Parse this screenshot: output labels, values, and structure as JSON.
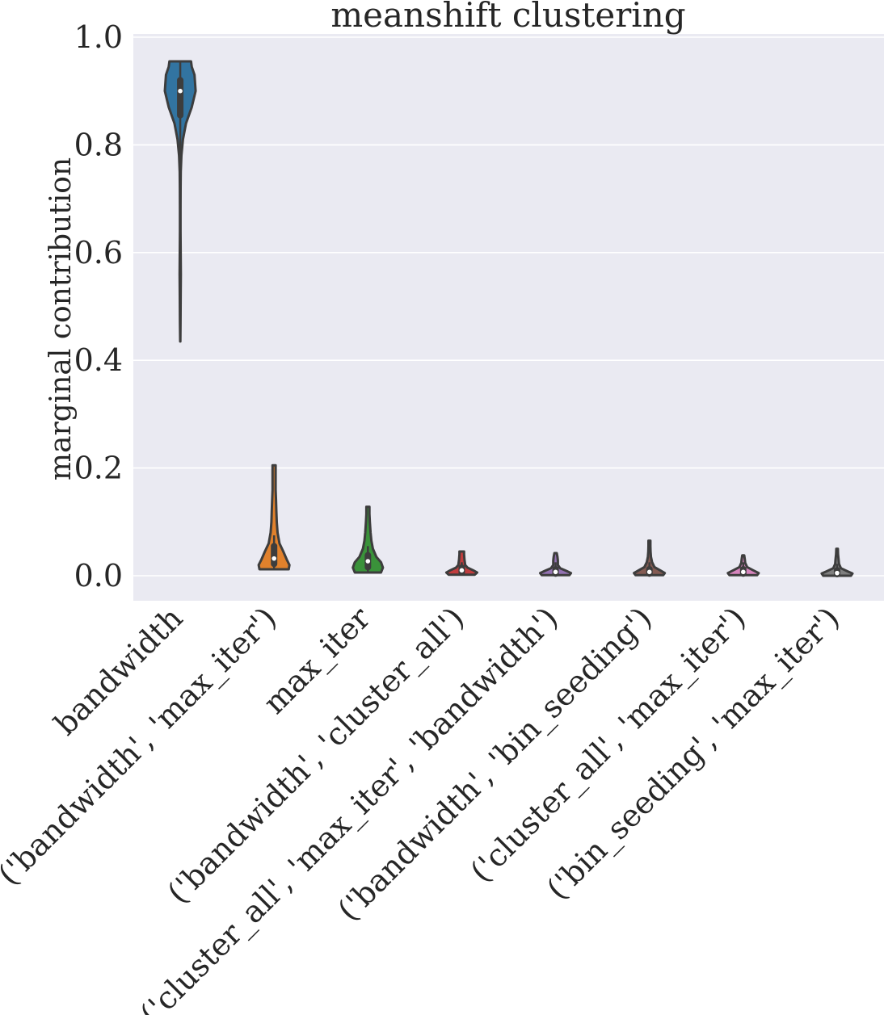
{
  "chart_data": {
    "type": "violin",
    "title": "meanshift clustering",
    "xlabel": "",
    "ylabel": "marginal contribution",
    "ylim": [
      -0.045,
      1.005
    ],
    "yticks": [
      0.0,
      0.2,
      0.4,
      0.6,
      0.8,
      1.0
    ],
    "ytick_labels": [
      "0.0",
      "0.2",
      "0.4",
      "0.6",
      "0.8",
      "1.0"
    ],
    "grid": true,
    "background": "#eaeaf2",
    "categories": [
      "bandwidth",
      "('bandwidth', 'max_iter')",
      "max_iter",
      "('bandwidth', 'cluster_all')",
      "('cluster_all', 'max_iter', 'bandwidth')",
      "('bandwidth', 'bin_seeding')",
      "('cluster_all', 'max_iter')",
      "('bin_seeding', 'max_iter')"
    ],
    "colors": [
      "#3274a1",
      "#e1812c",
      "#3a923a",
      "#c03d3e",
      "#9372b2",
      "#845b53",
      "#d684bd",
      "#7f7f7f"
    ],
    "series": [
      {
        "min": 0.435,
        "max": 0.955,
        "q1": 0.855,
        "median": 0.9,
        "q3": 0.92,
        "whisker_low": 0.755,
        "whisker_high": 0.955,
        "profile": [
          [
            0.435,
            0.002
          ],
          [
            0.47,
            0.008
          ],
          [
            0.52,
            0.012
          ],
          [
            0.56,
            0.016
          ],
          [
            0.6,
            0.012
          ],
          [
            0.64,
            0.008
          ],
          [
            0.68,
            0.008
          ],
          [
            0.72,
            0.01
          ],
          [
            0.75,
            0.014
          ],
          [
            0.78,
            0.03
          ],
          [
            0.81,
            0.07
          ],
          [
            0.84,
            0.15
          ],
          [
            0.87,
            0.3
          ],
          [
            0.9,
            0.4
          ],
          [
            0.93,
            0.37
          ],
          [
            0.945,
            0.3
          ],
          [
            0.955,
            0.28
          ]
        ]
      },
      {
        "min": 0.012,
        "max": 0.205,
        "q1": 0.022,
        "median": 0.032,
        "q3": 0.055,
        "whisker_low": 0.014,
        "whisker_high": 0.075,
        "profile": [
          [
            0.012,
            0.38
          ],
          [
            0.02,
            0.4
          ],
          [
            0.03,
            0.33
          ],
          [
            0.045,
            0.24
          ],
          [
            0.06,
            0.14
          ],
          [
            0.08,
            0.09
          ],
          [
            0.1,
            0.07
          ],
          [
            0.12,
            0.06
          ],
          [
            0.14,
            0.05
          ],
          [
            0.16,
            0.04
          ],
          [
            0.18,
            0.04
          ],
          [
            0.195,
            0.04
          ],
          [
            0.205,
            0.04
          ]
        ]
      },
      {
        "min": 0.006,
        "max": 0.128,
        "q1": 0.016,
        "median": 0.027,
        "q3": 0.038,
        "whisker_low": 0.008,
        "whisker_high": 0.055,
        "profile": [
          [
            0.006,
            0.34
          ],
          [
            0.015,
            0.39
          ],
          [
            0.025,
            0.34
          ],
          [
            0.035,
            0.22
          ],
          [
            0.05,
            0.13
          ],
          [
            0.065,
            0.09
          ],
          [
            0.08,
            0.07
          ],
          [
            0.1,
            0.05
          ],
          [
            0.115,
            0.04
          ],
          [
            0.128,
            0.04
          ]
        ]
      },
      {
        "min": 0.002,
        "max": 0.045,
        "q1": 0.006,
        "median": 0.01,
        "q3": 0.015,
        "whisker_low": 0.003,
        "whisker_high": 0.025,
        "profile": [
          [
            0.002,
            0.34
          ],
          [
            0.006,
            0.4
          ],
          [
            0.01,
            0.3
          ],
          [
            0.015,
            0.15
          ],
          [
            0.02,
            0.09
          ],
          [
            0.03,
            0.07
          ],
          [
            0.04,
            0.06
          ],
          [
            0.045,
            0.06
          ]
        ]
      },
      {
        "min": 0.001,
        "max": 0.042,
        "q1": 0.004,
        "median": 0.007,
        "q3": 0.012,
        "whisker_low": 0.002,
        "whisker_high": 0.025,
        "profile": [
          [
            0.001,
            0.36
          ],
          [
            0.005,
            0.4
          ],
          [
            0.009,
            0.28
          ],
          [
            0.014,
            0.12
          ],
          [
            0.02,
            0.06
          ],
          [
            0.028,
            0.06
          ],
          [
            0.035,
            0.05
          ],
          [
            0.042,
            0.03
          ]
        ]
      },
      {
        "min": 0.001,
        "max": 0.065,
        "q1": 0.004,
        "median": 0.007,
        "q3": 0.012,
        "whisker_low": 0.002,
        "whisker_high": 0.025,
        "profile": [
          [
            0.001,
            0.36
          ],
          [
            0.005,
            0.4
          ],
          [
            0.01,
            0.28
          ],
          [
            0.016,
            0.13
          ],
          [
            0.025,
            0.07
          ],
          [
            0.035,
            0.04
          ],
          [
            0.045,
            0.03
          ],
          [
            0.055,
            0.025
          ],
          [
            0.065,
            0.025
          ]
        ]
      },
      {
        "min": 0.001,
        "max": 0.038,
        "q1": 0.004,
        "median": 0.007,
        "q3": 0.012,
        "whisker_low": 0.002,
        "whisker_high": 0.025,
        "profile": [
          [
            0.001,
            0.36
          ],
          [
            0.005,
            0.4
          ],
          [
            0.01,
            0.26
          ],
          [
            0.016,
            0.1
          ],
          [
            0.024,
            0.05
          ],
          [
            0.031,
            0.04
          ],
          [
            0.038,
            0.025
          ]
        ]
      },
      {
        "min": 0.0,
        "max": 0.05,
        "q1": 0.003,
        "median": 0.005,
        "q3": 0.01,
        "whisker_low": 0.001,
        "whisker_high": 0.022,
        "profile": [
          [
            0.0,
            0.36
          ],
          [
            0.004,
            0.4
          ],
          [
            0.008,
            0.28
          ],
          [
            0.014,
            0.1
          ],
          [
            0.022,
            0.05
          ],
          [
            0.03,
            0.04
          ],
          [
            0.04,
            0.025
          ],
          [
            0.05,
            0.02
          ]
        ]
      }
    ]
  }
}
